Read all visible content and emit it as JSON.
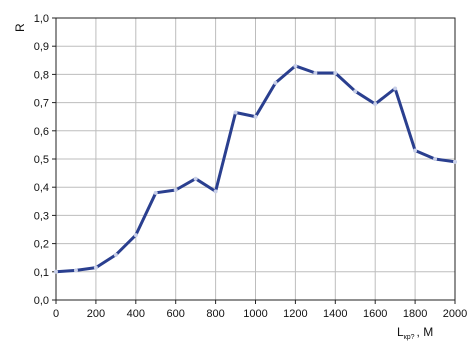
{
  "chart_data": {
    "type": "line",
    "title": "",
    "ylabel": "R",
    "xlabel": {
      "main": "L",
      "subscript": "кр?",
      "unit": "М"
    },
    "xlim": [
      0,
      2000
    ],
    "ylim": [
      0.0,
      1.0
    ],
    "grid": true,
    "x_ticks": [
      "0",
      "200",
      "400",
      "600",
      "800",
      "1000",
      "1200",
      "1400",
      "1600",
      "1800",
      "2000"
    ],
    "y_ticks": [
      "0,0",
      "0,1",
      "0,2",
      "0,3",
      "0,4",
      "0,5",
      "0,6",
      "0,7",
      "0,8",
      "0,9",
      "1,0"
    ],
    "series": [
      {
        "color": "#2a3f8f",
        "marker_color": "#c8cfe8",
        "x": [
          0,
          100,
          200,
          300,
          400,
          500,
          600,
          700,
          800,
          900,
          1000,
          1100,
          1200,
          1300,
          1400,
          1500,
          1600,
          1700,
          1800,
          1900,
          2000
        ],
        "y": [
          0.1,
          0.105,
          0.115,
          0.16,
          0.23,
          0.38,
          0.39,
          0.43,
          0.385,
          0.665,
          0.65,
          0.77,
          0.83,
          0.805,
          0.805,
          0.74,
          0.695,
          0.75,
          0.53,
          0.5,
          0.49
        ]
      }
    ]
  }
}
